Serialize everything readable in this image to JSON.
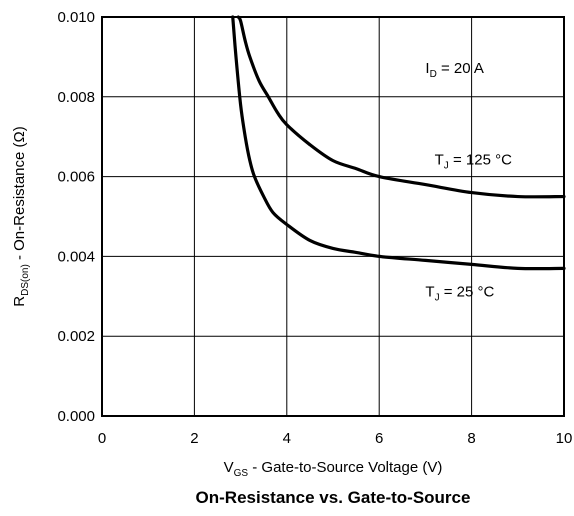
{
  "chart_data": {
    "type": "line",
    "title": "On-Resistance vs. Gate-to-Source",
    "xlabel": {
      "main": "V",
      "sub": "GS",
      "rest": " - Gate-to-Source Voltage (V)"
    },
    "ylabel": {
      "main": "R",
      "sub": "DS(on)",
      "rest": " - On-Resistance (Ω)"
    },
    "xlim": [
      0,
      10
    ],
    "ylim": [
      0,
      0.01
    ],
    "x_ticks": [
      0,
      2,
      4,
      6,
      8,
      10
    ],
    "x_tick_labels": [
      "0",
      "2",
      "4",
      "6",
      "8",
      "10"
    ],
    "y_ticks": [
      0,
      0.002,
      0.004,
      0.006,
      0.008,
      0.01
    ],
    "y_tick_labels": [
      "0.000",
      "0.002",
      "0.004",
      "0.006",
      "0.008",
      "0.010"
    ],
    "grid": true,
    "annotations": [
      {
        "id": "id",
        "main": "I",
        "sub": "D",
        "rest": " = 20 A",
        "x": 7.0,
        "y": 0.0086
      },
      {
        "id": "t125",
        "main": "T",
        "sub": "J",
        "rest": " = 125 °C",
        "x": 7.2,
        "y": 0.0063
      },
      {
        "id": "t25",
        "main": "T",
        "sub": "J",
        "rest": " = 25 °C",
        "x": 7.0,
        "y": 0.003
      }
    ],
    "series": [
      {
        "name": "T_J = 125 °C",
        "x": [
          2.95,
          3.0,
          3.1,
          3.2,
          3.4,
          3.6,
          3.8,
          4.0,
          4.5,
          5.0,
          5.5,
          6.0,
          7.0,
          8.0,
          9.0,
          10.0
        ],
        "y": [
          0.01,
          0.0099,
          0.0094,
          0.009,
          0.0084,
          0.008,
          0.0076,
          0.0073,
          0.0068,
          0.0064,
          0.0062,
          0.006,
          0.0058,
          0.0056,
          0.0055,
          0.0055
        ]
      },
      {
        "name": "T_J = 25 °C",
        "x": [
          2.83,
          2.9,
          3.0,
          3.1,
          3.2,
          3.3,
          3.5,
          3.7,
          4.0,
          4.5,
          5.0,
          5.5,
          6.0,
          7.0,
          8.0,
          9.0,
          10.0
        ],
        "y": [
          0.01,
          0.009,
          0.0078,
          0.007,
          0.0064,
          0.006,
          0.0055,
          0.0051,
          0.0048,
          0.0044,
          0.0042,
          0.0041,
          0.004,
          0.0039,
          0.0038,
          0.0037,
          0.0037
        ]
      }
    ]
  }
}
